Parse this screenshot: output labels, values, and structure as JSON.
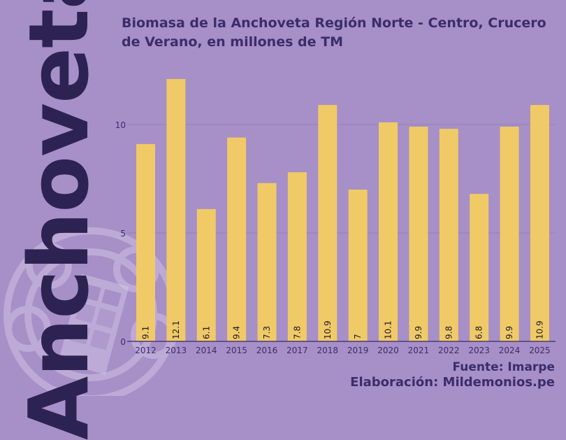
{
  "watermark": {
    "text": "Anchoveta"
  },
  "footer": {
    "source": "Fuente: Imarpe",
    "credit": "Elaboración: Mildemonios.pe"
  },
  "colors": {
    "background": "#a78fc7",
    "bar": "#f0ca66",
    "text_dark": "#3b2d6b",
    "gridline": "#9580b8"
  },
  "chart_data": {
    "type": "bar",
    "title": "Biomasa de la Anchoveta Región Norte - Centro, Crucero de Verano, en millones de TM",
    "xlabel": "",
    "ylabel": "",
    "categories": [
      "2012",
      "2013",
      "2014",
      "2015",
      "2016",
      "2017",
      "2018",
      "2019",
      "2020",
      "2021",
      "2022",
      "2023",
      "2024",
      "2025"
    ],
    "values": [
      9.1,
      12.1,
      6.1,
      9.4,
      7.3,
      7.8,
      10.9,
      7,
      10.1,
      9.9,
      9.8,
      6.8,
      9.9,
      10.9
    ],
    "value_labels": [
      "9.1",
      "12.1",
      "6.1",
      "9.4",
      "7.3",
      "7.8",
      "10.9",
      "7",
      "10.1",
      "9.9",
      "9.8",
      "6.8",
      "9.9",
      "10.9"
    ],
    "yticks": [
      0,
      5,
      10
    ],
    "ylim": [
      0,
      13
    ],
    "grid": true,
    "legend": "none"
  }
}
